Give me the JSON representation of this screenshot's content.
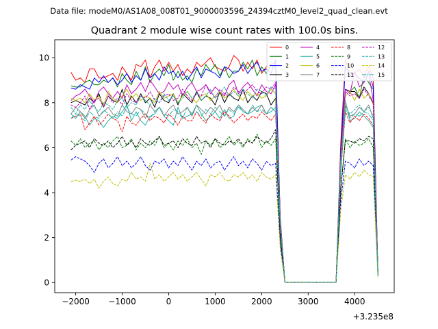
{
  "header": {
    "suptitle": "Data file: modeM0/AS1A08_008T01_9000003596_24394cztM0_level2_quad_clean.evt",
    "title": "Quadrant 2 module wise count rates with 100.0s bins."
  },
  "chart_data": {
    "type": "line",
    "x_offset_label": "+3.235e8",
    "xlim": [
      -2450,
      4850
    ],
    "ylim": [
      -0.45,
      10.8
    ],
    "xticks": [
      -2000,
      -1000,
      0,
      1000,
      2000,
      3000,
      4000
    ],
    "yticks": [
      0,
      2,
      4,
      6,
      8,
      10
    ],
    "grid": false,
    "legend_position": "upper right",
    "legend_columns": 4,
    "x": [
      -2100,
      -2000,
      -1900,
      -1800,
      -1700,
      -1600,
      -1500,
      -1400,
      -1300,
      -1200,
      -1100,
      -1000,
      -900,
      -800,
      -700,
      -600,
      -500,
      -400,
      -300,
      -200,
      -100,
      0,
      100,
      200,
      300,
      400,
      500,
      600,
      700,
      800,
      900,
      1000,
      1100,
      1200,
      1300,
      1400,
      1500,
      1600,
      1700,
      1800,
      1900,
      2000,
      2100,
      2200,
      2300,
      2400,
      2500,
      2600,
      2700,
      2800,
      2900,
      3000,
      3100,
      3200,
      3300,
      3400,
      3500,
      3600,
      3700,
      3800,
      3900,
      4000,
      4100,
      4200,
      4300,
      4400,
      4500
    ],
    "series": [
      {
        "name": "0",
        "color": "#ff0000",
        "dash": "solid",
        "values": [
          9.35,
          9.0,
          9.1,
          8.9,
          9.5,
          9.5,
          9.1,
          9.1,
          9.2,
          9.3,
          9.0,
          9.6,
          9.3,
          9.0,
          9.7,
          9.6,
          9.9,
          9.1,
          9.6,
          9.9,
          9.4,
          9.8,
          9.4,
          9.7,
          9.2,
          9.5,
          9.3,
          9.8,
          9.6,
          9.8,
          10.0,
          9.6,
          9.5,
          9.4,
          9.6,
          10.1,
          9.9,
          9.4,
          9.8,
          9.5,
          9.9,
          9.3,
          9.6,
          9.7,
          9.8,
          2.9,
          0.02,
          0.02,
          0.02,
          0.02,
          0.02,
          0.02,
          0.02,
          0.02,
          0.02,
          0.02,
          0.02,
          0.02,
          6.2,
          9.9,
          9.3,
          9.3,
          9.5,
          9.2,
          9.6,
          9.1,
          0.5
        ]
      },
      {
        "name": "1",
        "color": "#008000",
        "dash": "solid",
        "values": [
          8.75,
          8.7,
          8.7,
          8.9,
          9.0,
          8.8,
          8.8,
          9.0,
          8.9,
          9.1,
          8.7,
          9.3,
          9.0,
          8.8,
          9.4,
          9.0,
          9.6,
          8.9,
          9.3,
          9.5,
          9.2,
          9.7,
          9.0,
          9.4,
          9.0,
          9.2,
          8.9,
          9.5,
          9.2,
          9.7,
          9.4,
          9.7,
          9.2,
          9.6,
          9.1,
          9.4,
          9.4,
          9.8,
          9.5,
          9.9,
          9.2,
          9.6,
          9.3,
          9.7,
          9.5,
          2.7,
          0.02,
          0.02,
          0.02,
          0.02,
          0.02,
          0.02,
          0.02,
          0.02,
          0.02,
          0.02,
          0.02,
          0.02,
          5.7,
          8.6,
          8.5,
          8.7,
          8.2,
          9.2,
          8.9,
          8.6,
          0.4
        ]
      },
      {
        "name": "2",
        "color": "#0000ff",
        "dash": "solid",
        "values": [
          8.65,
          8.6,
          8.8,
          8.7,
          8.6,
          9.1,
          8.9,
          9.2,
          8.9,
          9.1,
          8.8,
          9.0,
          9.3,
          8.9,
          9.2,
          9.0,
          9.5,
          9.1,
          9.3,
          9.0,
          9.6,
          9.3,
          9.4,
          9.1,
          9.4,
          9.0,
          9.3,
          9.6,
          9.1,
          9.5,
          9.4,
          9.3,
          9.1,
          9.6,
          9.5,
          9.3,
          9.4,
          9.7,
          9.3,
          9.6,
          9.8,
          9.4,
          9.5,
          9.3,
          9.9,
          2.8,
          0.02,
          0.02,
          0.02,
          0.02,
          0.02,
          0.02,
          0.02,
          0.02,
          0.02,
          0.02,
          0.02,
          0.02,
          5.8,
          9.6,
          9.2,
          9.3,
          9.1,
          8.9,
          9.4,
          8.7,
          0.4
        ]
      },
      {
        "name": "3",
        "color": "#000000",
        "dash": "solid",
        "values": [
          8.0,
          8.1,
          8.0,
          7.9,
          8.2,
          8.0,
          8.4,
          7.8,
          8.3,
          8.1,
          8.0,
          8.6,
          7.9,
          8.3,
          8.0,
          8.4,
          8.0,
          8.2,
          7.8,
          8.4,
          8.1,
          8.0,
          8.4,
          7.9,
          8.4,
          8.2,
          8.0,
          8.5,
          8.1,
          8.3,
          8.2,
          7.9,
          8.5,
          8.0,
          8.4,
          8.2,
          8.1,
          8.6,
          8.0,
          8.3,
          8.1,
          8.5,
          8.4,
          7.9,
          8.2,
          2.6,
          0.02,
          0.02,
          0.02,
          0.02,
          0.02,
          0.02,
          0.02,
          0.02,
          0.02,
          0.02,
          0.02,
          0.02,
          5.3,
          8.6,
          8.5,
          8.5,
          8.2,
          8.7,
          8.4,
          8.0,
          0.4
        ]
      },
      {
        "name": "4",
        "color": "#bf00bf",
        "dash": "solid",
        "values": [
          8.1,
          8.3,
          8.4,
          8.6,
          8.3,
          8.0,
          8.5,
          8.7,
          8.4,
          8.2,
          8.5,
          8.2,
          8.8,
          8.4,
          8.6,
          8.9,
          8.5,
          9.0,
          8.7,
          8.4,
          8.5,
          8.9,
          8.6,
          8.8,
          8.3,
          8.7,
          8.9,
          8.5,
          8.6,
          8.8,
          8.4,
          8.7,
          8.5,
          8.3,
          8.8,
          9.0,
          8.4,
          8.7,
          8.9,
          8.6,
          8.3,
          8.8,
          8.5,
          8.4,
          8.8,
          2.7,
          0.02,
          0.02,
          0.02,
          0.02,
          0.02,
          0.02,
          0.02,
          0.02,
          0.02,
          0.02,
          0.02,
          0.02,
          5.5,
          8.6,
          8.4,
          9.4,
          8.7,
          8.9,
          9.3,
          8.1,
          0.4
        ]
      },
      {
        "name": "5",
        "color": "#20b2aa",
        "dash": "solid",
        "values": [
          7.5,
          7.3,
          7.6,
          7.4,
          7.0,
          7.3,
          7.2,
          6.9,
          7.2,
          7.4,
          7.3,
          7.6,
          7.9,
          7.2,
          7.6,
          7.2,
          7.0,
          7.4,
          7.5,
          7.8,
          7.4,
          7.2,
          7.0,
          7.8,
          7.3,
          7.4,
          7.5,
          7.9,
          7.5,
          7.2,
          7.4,
          7.6,
          7.3,
          7.7,
          7.3,
          7.4,
          7.9,
          7.6,
          7.5,
          7.6,
          7.8,
          7.9,
          7.5,
          7.6,
          7.8,
          2.4,
          0.02,
          0.02,
          0.02,
          0.02,
          0.02,
          0.02,
          0.02,
          0.02,
          0.02,
          0.02,
          0.02,
          0.02,
          5.1,
          8.1,
          7.2,
          7.3,
          7.6,
          7.4,
          7.2,
          6.9,
          0.3
        ]
      },
      {
        "name": "6",
        "color": "#bfbf00",
        "dash": "solid",
        "values": [
          8.2,
          8.1,
          8.2,
          8.0,
          8.4,
          8.1,
          8.3,
          7.9,
          8.5,
          8.2,
          8.0,
          8.3,
          8.6,
          8.2,
          8.4,
          8.1,
          8.3,
          8.2,
          8.0,
          8.5,
          8.2,
          8.3,
          8.4,
          8.0,
          8.3,
          8.5,
          8.2,
          8.0,
          8.3,
          8.4,
          8.1,
          8.3,
          8.5,
          8.2,
          8.4,
          8.6,
          8.3,
          8.1,
          8.5,
          8.3,
          8.4,
          8.2,
          8.3,
          8.6,
          8.4,
          2.6,
          0.02,
          0.02,
          0.02,
          0.02,
          0.02,
          0.02,
          0.02,
          0.02,
          0.02,
          0.02,
          0.02,
          0.02,
          5.4,
          8.3,
          8.5,
          8.1,
          8.6,
          8.2,
          8.4,
          7.9,
          0.3
        ]
      },
      {
        "name": "7",
        "color": "#808080",
        "dash": "solid",
        "values": [
          7.5,
          7.8,
          7.6,
          7.3,
          7.7,
          7.9,
          7.4,
          7.6,
          7.8,
          7.5,
          7.4,
          7.9,
          7.6,
          7.5,
          7.8,
          7.7,
          7.3,
          7.9,
          7.6,
          7.8,
          7.4,
          7.7,
          7.9,
          7.5,
          7.6,
          7.8,
          7.4,
          7.9,
          7.7,
          7.5,
          7.8,
          7.6,
          7.9,
          7.4,
          7.8,
          7.6,
          7.9,
          7.7,
          7.5,
          7.8,
          7.6,
          7.9,
          7.5,
          7.8,
          7.6,
          2.5,
          0.02,
          0.02,
          0.02,
          0.02,
          0.02,
          0.02,
          0.02,
          0.02,
          0.02,
          0.02,
          0.02,
          0.02,
          5.3,
          7.9,
          7.4,
          7.5,
          7.8,
          7.6,
          7.9,
          7.3,
          0.3
        ]
      },
      {
        "name": "8",
        "color": "#ff0000",
        "dash": "dashed",
        "values": [
          7.3,
          7.4,
          7.5,
          6.8,
          7.1,
          7.4,
          7.0,
          7.2,
          7.5,
          7.3,
          7.2,
          6.7,
          7.4,
          7.1,
          7.0,
          7.3,
          7.5,
          7.2,
          7.4,
          7.3,
          7.1,
          7.5,
          7.3,
          7.0,
          7.4,
          7.2,
          7.2,
          7.6,
          7.3,
          7.1,
          7.5,
          7.3,
          7.2,
          7.6,
          7.4,
          7.1,
          7.3,
          7.5,
          7.2,
          7.4,
          7.3,
          7.6,
          7.4,
          7.2,
          7.5,
          2.3,
          0.02,
          0.02,
          0.02,
          0.02,
          0.02,
          0.02,
          0.02,
          0.02,
          0.02,
          0.02,
          0.02,
          0.02,
          4.9,
          7.6,
          7.1,
          7.4,
          7.2,
          7.5,
          7.3,
          7.0,
          0.3
        ]
      },
      {
        "name": "9",
        "color": "#008000",
        "dash": "dashed",
        "values": [
          6.3,
          6.1,
          6.4,
          6.0,
          6.2,
          6.3,
          5.9,
          6.2,
          6.0,
          6.3,
          6.5,
          6.0,
          6.1,
          6.4,
          5.9,
          6.2,
          6.0,
          6.3,
          6.1,
          6.5,
          6.0,
          6.2,
          5.9,
          6.3,
          6.1,
          6.4,
          6.0,
          6.2,
          5.7,
          6.3,
          6.1,
          6.4,
          6.0,
          6.2,
          6.5,
          6.1,
          6.3,
          6.0,
          6.4,
          6.2,
          6.6,
          6.0,
          6.3,
          6.1,
          6.4,
          2.0,
          0.02,
          0.02,
          0.02,
          0.02,
          0.02,
          0.02,
          0.02,
          0.02,
          0.02,
          0.02,
          0.02,
          0.02,
          4.2,
          6.4,
          6.0,
          6.3,
          6.1,
          6.2,
          6.4,
          6.0,
          0.3
        ]
      },
      {
        "name": "10",
        "color": "#0000ff",
        "dash": "dashed",
        "values": [
          5.45,
          5.6,
          5.5,
          5.4,
          5.2,
          4.9,
          5.3,
          5.5,
          5.1,
          5.3,
          5.6,
          5.2,
          5.4,
          5.1,
          5.3,
          5.6,
          5.2,
          5.0,
          5.4,
          5.3,
          5.5,
          5.1,
          5.4,
          5.2,
          5.6,
          5.3,
          5.0,
          5.4,
          5.2,
          5.5,
          5.1,
          5.3,
          5.4,
          5.0,
          5.3,
          5.6,
          5.2,
          5.4,
          5.1,
          5.5,
          5.3,
          5.0,
          5.4,
          5.2,
          5.3,
          1.7,
          0.02,
          0.02,
          0.02,
          0.02,
          0.02,
          0.02,
          0.02,
          0.02,
          0.02,
          0.02,
          0.02,
          0.02,
          3.6,
          5.4,
          5.3,
          5.1,
          5.5,
          5.2,
          5.4,
          5.2,
          0.3
        ]
      },
      {
        "name": "11",
        "color": "#000000",
        "dash": "dashed",
        "values": [
          5.9,
          6.1,
          6.2,
          6.3,
          6.0,
          6.4,
          6.2,
          6.1,
          6.3,
          6.0,
          6.2,
          6.5,
          6.1,
          6.3,
          6.0,
          6.4,
          6.2,
          6.1,
          6.3,
          6.5,
          6.1,
          6.2,
          6.3,
          6.0,
          6.4,
          6.2,
          6.1,
          6.5,
          6.2,
          6.3,
          6.0,
          6.4,
          6.2,
          6.1,
          6.3,
          6.2,
          6.4,
          6.1,
          6.3,
          6.2,
          6.5,
          6.3,
          6.2,
          6.4,
          6.8,
          2.0,
          0.02,
          0.02,
          0.02,
          0.02,
          0.02,
          0.02,
          0.02,
          0.02,
          0.02,
          0.02,
          0.02,
          0.02,
          4.1,
          6.3,
          6.3,
          6.2,
          6.4,
          6.3,
          6.5,
          6.4,
          0.3
        ]
      },
      {
        "name": "12",
        "color": "#bf00bf",
        "dash": "dashed",
        "values": [
          7.9,
          7.8,
          8.0,
          8.3,
          7.7,
          8.1,
          8.2,
          7.8,
          8.3,
          8.0,
          8.2,
          7.9,
          8.4,
          8.1,
          8.0,
          8.3,
          8.2,
          8.5,
          8.1,
          8.0,
          8.3,
          8.4,
          8.1,
          8.2,
          8.6,
          8.3,
          8.1,
          8.4,
          8.3,
          8.8,
          8.5,
          8.2,
          8.6,
          8.4,
          8.3,
          8.7,
          8.5,
          8.4,
          8.6,
          8.8,
          8.5,
          8.4,
          8.7,
          8.6,
          8.9,
          2.7,
          0.02,
          0.02,
          0.02,
          0.02,
          0.02,
          0.02,
          0.02,
          0.02,
          0.02,
          0.02,
          0.02,
          0.02,
          5.6,
          8.5,
          8.3,
          8.4,
          8.2,
          8.6,
          8.3,
          8.0,
          0.3
        ]
      },
      {
        "name": "13",
        "color": "#20b2aa",
        "dash": "dashed",
        "values": [
          7.8,
          7.5,
          7.9,
          7.7,
          8.1,
          7.8,
          7.6,
          8.0,
          7.9,
          7.7,
          8.1,
          8.2,
          7.8,
          8.0,
          7.9,
          8.3,
          8.1,
          7.9,
          8.2,
          8.0,
          8.4,
          8.1,
          8.3,
          8.0,
          8.2,
          8.5,
          8.2,
          8.4,
          8.1,
          8.3,
          8.6,
          8.2,
          8.4,
          8.7,
          8.3,
          8.5,
          8.3,
          8.6,
          8.4,
          8.2,
          8.6,
          8.5,
          8.3,
          8.7,
          8.6,
          2.6,
          0.02,
          0.02,
          0.02,
          0.02,
          0.02,
          0.02,
          0.02,
          0.02,
          0.02,
          0.02,
          0.02,
          0.02,
          5.5,
          7.8,
          7.5,
          7.7,
          7.9,
          7.6,
          7.8,
          7.4,
          0.3
        ]
      },
      {
        "name": "14",
        "color": "#bfbf00",
        "dash": "dashed",
        "values": [
          4.5,
          4.55,
          4.5,
          4.6,
          4.4,
          4.6,
          4.2,
          4.5,
          4.7,
          4.4,
          4.3,
          4.6,
          4.5,
          4.9,
          4.6,
          4.7,
          4.5,
          5.3,
          4.6,
          4.8,
          4.5,
          4.7,
          4.9,
          4.6,
          4.8,
          4.5,
          4.7,
          4.9,
          4.6,
          4.3,
          4.8,
          4.7,
          4.9,
          4.6,
          4.5,
          4.8,
          4.7,
          4.9,
          4.6,
          4.8,
          4.5,
          4.9,
          4.7,
          4.6,
          4.8,
          1.5,
          0.02,
          0.02,
          0.02,
          0.02,
          0.02,
          0.02,
          0.02,
          0.02,
          0.02,
          0.02,
          0.02,
          0.02,
          3.2,
          4.8,
          4.6,
          4.9,
          4.7,
          5.0,
          4.8,
          4.7,
          0.2
        ]
      },
      {
        "name": "15",
        "color": "#20b2aa",
        "dash": "dashdot",
        "values": [
          7.3,
          7.5,
          7.4,
          7.2,
          7.6,
          7.4,
          7.3,
          7.7,
          7.5,
          7.3,
          7.6,
          7.4,
          7.8,
          7.5,
          7.4,
          7.7,
          7.5,
          7.3,
          7.6,
          7.8,
          7.5,
          7.4,
          7.7,
          7.6,
          7.3,
          7.8,
          7.5,
          7.6,
          7.4,
          7.7,
          7.5,
          7.8,
          7.6,
          7.4,
          7.7,
          7.5,
          7.8,
          7.6,
          7.5,
          7.9,
          7.6,
          7.7,
          7.5,
          7.8,
          7.6,
          2.4,
          0.02,
          0.02,
          0.02,
          0.02,
          0.02,
          0.02,
          0.02,
          0.02,
          0.02,
          0.02,
          0.02,
          0.02,
          5.0,
          7.7,
          7.3,
          7.5,
          7.4,
          7.6,
          7.5,
          7.2,
          0.3
        ]
      }
    ]
  }
}
